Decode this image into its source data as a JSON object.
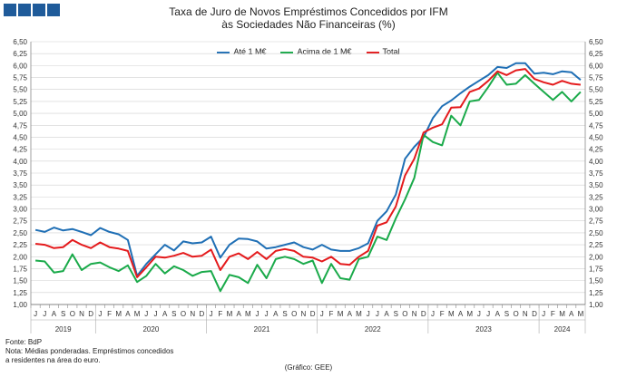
{
  "header_squares": 4,
  "title_line1": "Taxa de Juro de Novos Empréstimos Concedidos por IFM",
  "title_line2": "às Sociedades Não Financeiras (%)",
  "footer": {
    "source": "Fonte: BdP",
    "note1": "Nota: Médias ponderadas. Empréstimos concedidos",
    "note2": "a residentes na área do euro.",
    "credit": "(Gráfico: GEE)"
  },
  "colors": {
    "ate1m": "#1f6fb5",
    "acima1m": "#1aaa4a",
    "total": "#e41a1c",
    "grid": "#d0d0d0"
  },
  "chart_data": {
    "type": "line",
    "title": "Taxa de Juro de Novos Empréstimos Concedidos por IFM às Sociedades Não Financeiras (%)",
    "x_labels": [
      "J",
      "J",
      "A",
      "S",
      "O",
      "N",
      "D",
      "J",
      "F",
      "M",
      "A",
      "M",
      "J",
      "J",
      "A",
      "S",
      "O",
      "N",
      "D",
      "J",
      "F",
      "M",
      "A",
      "M",
      "J",
      "J",
      "A",
      "S",
      "O",
      "N",
      "D",
      "J",
      "F",
      "M",
      "A",
      "M",
      "J",
      "J",
      "A",
      "S",
      "O",
      "N",
      "D",
      "J",
      "F",
      "M",
      "A",
      "M",
      "J",
      "J",
      "A",
      "S",
      "O",
      "N",
      "D",
      "J",
      "F",
      "M",
      "A",
      "M"
    ],
    "year_groups": [
      {
        "label": "2019",
        "start": 0,
        "end": 7
      },
      {
        "label": "2020",
        "start": 7,
        "end": 19
      },
      {
        "label": "2021",
        "start": 19,
        "end": 31
      },
      {
        "label": "2022",
        "start": 31,
        "end": 43
      },
      {
        "label": "2023",
        "start": 43,
        "end": 55
      },
      {
        "label": "2024",
        "start": 55,
        "end": 60
      }
    ],
    "y_ticks": [
      "1,00",
      "1,25",
      "1,50",
      "1,75",
      "2,00",
      "2,25",
      "2,50",
      "2,75",
      "3,00",
      "3,25",
      "3,50",
      "3,75",
      "4,00",
      "4,25",
      "4,50",
      "4,75",
      "5,00",
      "5,25",
      "5,50",
      "5,75",
      "6,00",
      "6,25",
      "6,50"
    ],
    "ylim": [
      1.0,
      6.5
    ],
    "grid": true,
    "legend_position": "top",
    "series": [
      {
        "name": "Até 1 M€",
        "color": "#1f6fb5",
        "values": [
          2.56,
          2.52,
          2.61,
          2.55,
          2.58,
          2.52,
          2.45,
          2.6,
          2.52,
          2.47,
          2.35,
          1.6,
          1.85,
          2.05,
          2.25,
          2.13,
          2.32,
          2.28,
          2.3,
          2.42,
          1.98,
          2.25,
          2.38,
          2.37,
          2.32,
          2.17,
          2.2,
          2.25,
          2.3,
          2.2,
          2.15,
          2.25,
          2.15,
          2.12,
          2.12,
          2.18,
          2.28,
          2.75,
          2.95,
          3.3,
          4.05,
          4.3,
          4.5,
          4.9,
          5.15,
          5.27,
          5.42,
          5.56,
          5.68,
          5.8,
          5.97,
          5.95,
          6.05,
          6.05,
          5.83,
          5.85,
          5.82,
          5.88,
          5.86,
          5.7
        ]
      },
      {
        "name": "Acima de 1 M€",
        "color": "#1aaa4a",
        "values": [
          1.92,
          1.9,
          1.67,
          1.7,
          2.05,
          1.72,
          1.85,
          1.88,
          1.78,
          1.7,
          1.82,
          1.47,
          1.6,
          1.85,
          1.65,
          1.8,
          1.72,
          1.6,
          1.68,
          1.7,
          1.28,
          1.62,
          1.57,
          1.45,
          1.83,
          1.55,
          1.95,
          2.0,
          1.95,
          1.85,
          1.92,
          1.45,
          1.85,
          1.55,
          1.52,
          1.95,
          2.0,
          2.42,
          2.35,
          2.8,
          3.2,
          3.65,
          4.55,
          4.4,
          4.33,
          4.95,
          4.75,
          5.25,
          5.28,
          5.55,
          5.85,
          5.6,
          5.62,
          5.8,
          5.62,
          5.45,
          5.28,
          5.45,
          5.25,
          5.45
        ]
      },
      {
        "name": "Total",
        "color": "#e41a1c",
        "values": [
          2.27,
          2.25,
          2.18,
          2.2,
          2.35,
          2.25,
          2.18,
          2.3,
          2.2,
          2.17,
          2.12,
          1.57,
          1.78,
          2.0,
          1.98,
          2.02,
          2.08,
          2.0,
          2.02,
          2.15,
          1.72,
          2.0,
          2.07,
          1.95,
          2.1,
          1.95,
          2.12,
          2.16,
          2.12,
          2.0,
          1.98,
          1.9,
          2.0,
          1.85,
          1.83,
          2.0,
          2.12,
          2.65,
          2.72,
          3.05,
          3.7,
          4.05,
          4.6,
          4.7,
          4.77,
          5.12,
          5.13,
          5.45,
          5.52,
          5.68,
          5.88,
          5.8,
          5.9,
          5.93,
          5.72,
          5.65,
          5.6,
          5.68,
          5.62,
          5.6
        ]
      }
    ]
  }
}
